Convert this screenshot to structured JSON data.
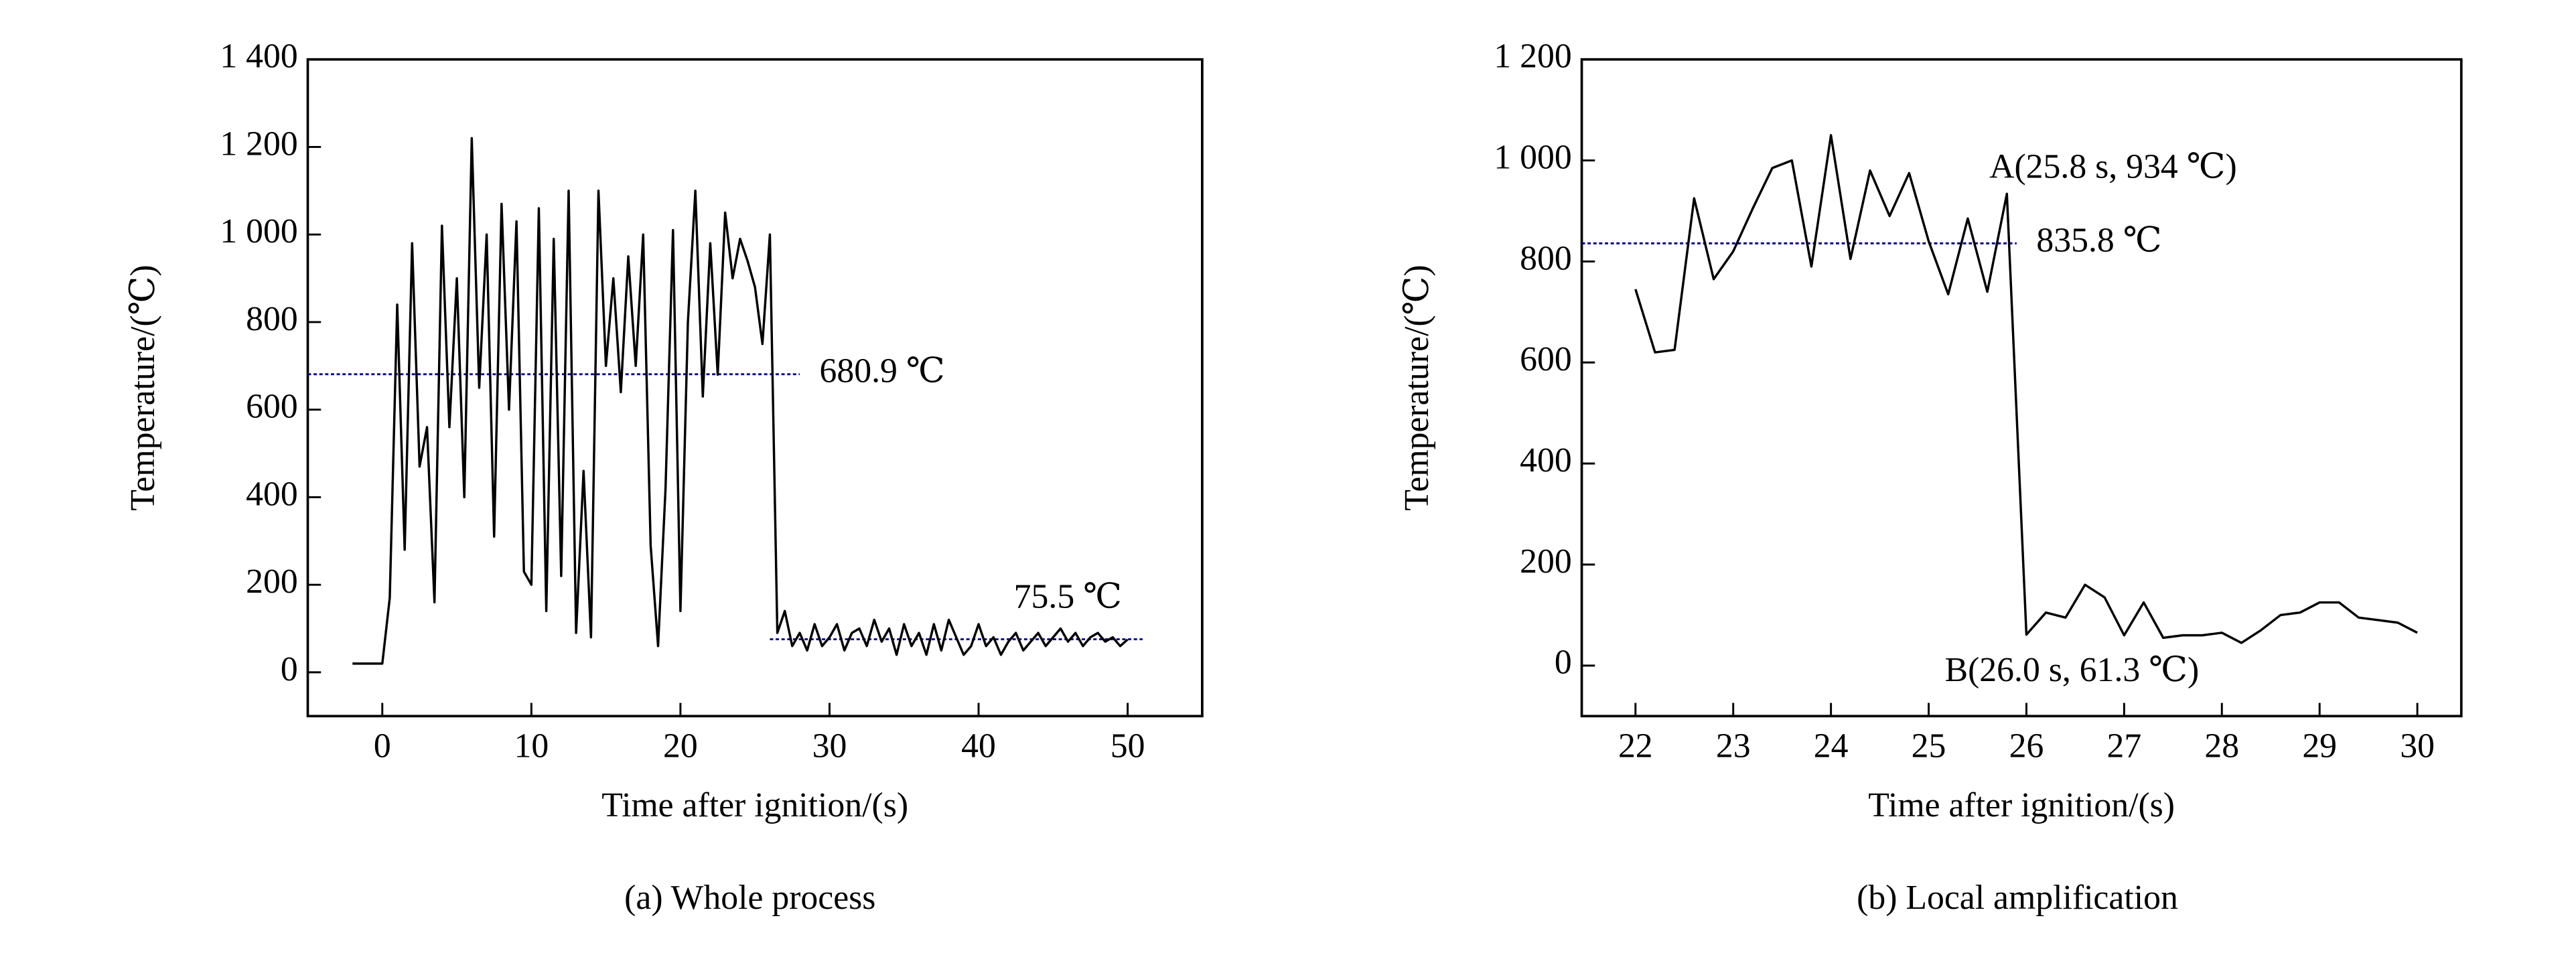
{
  "chart_data": [
    {
      "type": "line",
      "caption": "(a)  Whole process",
      "xlabel": "Time after ignition/(s)",
      "ylabel": "Temperature/(℃)",
      "xlim": [
        -5,
        55
      ],
      "ylim": [
        -100,
        1400
      ],
      "xticks": [
        0,
        10,
        20,
        30,
        40,
        50
      ],
      "yticks": [
        0,
        200,
        400,
        600,
        800,
        {
          "value": 1000,
          "label": "1 000"
        },
        {
          "value": 1200,
          "label": "1 200"
        },
        {
          "value": 1400,
          "label": "1 400"
        }
      ],
      "series": [
        {
          "color": "#000000",
          "x": [
            -2,
            -1.5,
            -1,
            -0.5,
            0,
            0.5,
            1,
            1.5,
            2,
            2.5,
            3,
            3.5,
            4,
            4.5,
            5,
            5.5,
            6,
            6.5,
            7,
            7.5,
            8,
            8.5,
            9,
            9.5,
            10,
            10.5,
            11,
            11.5,
            12,
            12.5,
            13,
            13.5,
            14,
            14.5,
            15,
            15.5,
            16,
            16.5,
            17,
            17.5,
            18,
            18.5,
            19,
            19.5,
            20,
            20.5,
            21,
            21.5,
            22,
            22.5,
            23,
            23.5,
            24,
            24.5,
            25,
            25.5,
            26,
            26.5,
            27,
            27.5,
            28,
            28.5,
            29,
            29.5,
            30,
            30.5,
            31,
            31.5,
            32,
            32.5,
            33,
            33.5,
            34,
            34.5,
            35,
            35.5,
            36,
            36.5,
            37,
            37.5,
            38,
            38.5,
            39,
            39.5,
            40,
            40.5,
            41,
            41.5,
            42,
            42.5,
            43,
            43.5,
            44,
            44.5,
            45,
            45.5,
            46,
            46.5,
            47,
            47.5,
            48,
            48.5,
            49,
            49.5,
            50
          ],
          "values": [
            20,
            20,
            20,
            20,
            20,
            170,
            840,
            280,
            980,
            470,
            560,
            160,
            1020,
            560,
            900,
            400,
            1220,
            650,
            1000,
            310,
            1070,
            600,
            1030,
            230,
            200,
            1060,
            140,
            990,
            220,
            1100,
            90,
            460,
            80,
            1100,
            700,
            900,
            640,
            950,
            700,
            1000,
            290,
            60,
            420,
            1010,
            140,
            800,
            1100,
            630,
            980,
            680,
            1050,
            900,
            990,
            940,
            880,
            750,
            1000,
            90,
            140,
            60,
            90,
            50,
            110,
            60,
            80,
            110,
            50,
            90,
            100,
            60,
            120,
            70,
            100,
            40,
            110,
            60,
            90,
            40,
            110,
            50,
            120,
            80,
            40,
            60,
            110,
            60,
            80,
            40,
            70,
            90,
            50,
            70,
            90,
            60,
            80,
            100,
            70,
            90,
            60,
            80,
            90,
            70,
            80,
            60,
            75
          ]
        }
      ],
      "reference_lines": [
        {
          "value": 680.9,
          "label": "680.9 ℃",
          "x": [
            -5,
            28
          ],
          "color": "#00008b"
        },
        {
          "value": 75.5,
          "label": "75.5 ℃",
          "x": [
            26,
            51
          ],
          "color": "#00008b"
        }
      ],
      "annotations": []
    },
    {
      "type": "line",
      "caption": "(b)   Local amplification",
      "xlabel": "Time after ignition/(s)",
      "ylabel": "Temperature/(℃)",
      "xlim": [
        21.45,
        30.45
      ],
      "ylim": [
        -100,
        1200
      ],
      "xticks": [
        22,
        23,
        24,
        25,
        26,
        27,
        28,
        29,
        30
      ],
      "yticks": [
        0,
        200,
        400,
        600,
        800,
        {
          "value": 1000,
          "label": "1 000"
        },
        {
          "value": 1200,
          "label": "1 200"
        }
      ],
      "series": [
        {
          "color": "#000000",
          "x": [
            22,
            22.2,
            22.4,
            22.6,
            22.8,
            23,
            23.2,
            23.4,
            23.6,
            23.8,
            24,
            24.2,
            24.4,
            24.6,
            24.8,
            25,
            25.2,
            25.4,
            25.6,
            25.8,
            26,
            26.2,
            26.4,
            26.6,
            26.8,
            27,
            27.2,
            27.4,
            27.6,
            27.8,
            28,
            28.2,
            28.4,
            28.6,
            28.8,
            29,
            29.2,
            29.4,
            29.6,
            29.8,
            30
          ],
          "values": [
            745,
            620,
            625,
            925,
            765,
            820,
            905,
            985,
            1000,
            790,
            1050,
            805,
            980,
            890,
            975,
            840,
            735,
            885,
            740,
            934,
            61.3,
            105,
            95,
            160,
            135,
            60,
            125,
            55,
            60,
            60,
            65,
            45,
            70,
            100,
            105,
            125,
            125,
            95,
            90,
            85,
            65
          ]
        }
      ],
      "reference_lines": [
        {
          "value": 835.8,
          "label": "835.8 ℃",
          "x": [
            21.45,
            25.9
          ],
          "color": "#00008b"
        }
      ],
      "annotations": [
        "A(25.8 s, 934 ℃)",
        "B(26.0 s, 61.3 ℃)"
      ]
    }
  ]
}
